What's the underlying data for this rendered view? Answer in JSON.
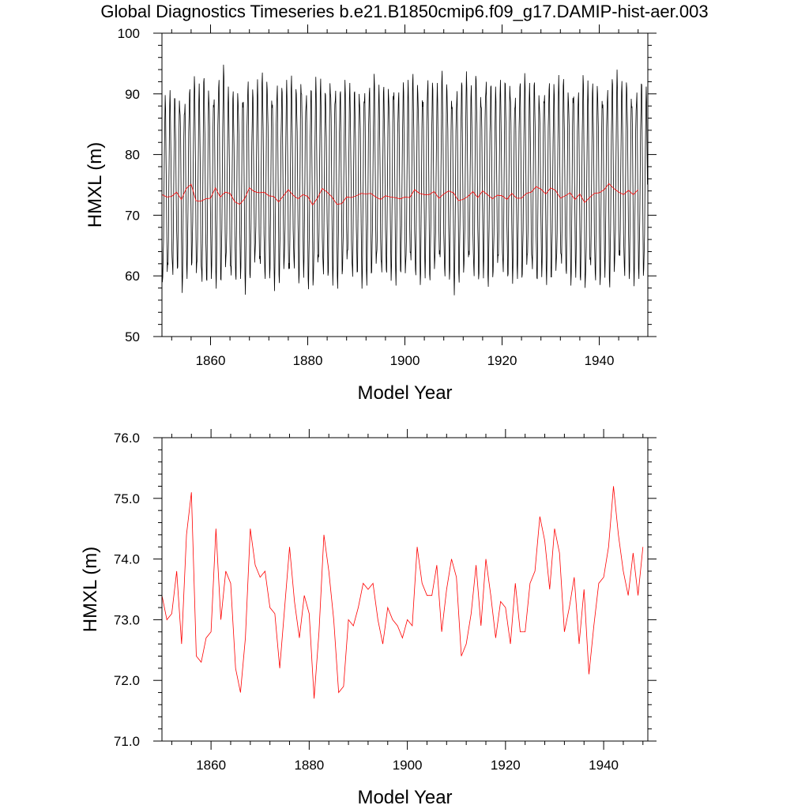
{
  "title": "Global Diagnostics Timeseries b.e21.B1850cmip6.f09_g17.DAMIP-hist-aer.003",
  "colors": {
    "monthly": "#000000",
    "annual": "#ff0000",
    "axes": "#000000",
    "background": "#ffffff"
  },
  "chart_data": [
    {
      "type": "line",
      "xlabel": "Model Year",
      "ylabel": "HMXL (m)",
      "xlim": [
        1850,
        1950
      ],
      "ylim": [
        50,
        100
      ],
      "xticks": [
        1860,
        1880,
        1900,
        1920,
        1940
      ],
      "xtick_labels": [
        "1860",
        "1880",
        "1900",
        "1920",
        "1940"
      ],
      "yticks": [
        50,
        60,
        70,
        80,
        90,
        100
      ],
      "ytick_labels": [
        "50",
        "60",
        "70",
        "80",
        "90",
        "100"
      ],
      "grid": false,
      "series": [
        {
          "color": "#000000",
          "style": "monthly seasonal cycle",
          "x_start": 1850,
          "x_end": 1950,
          "points_per_year": 12,
          "annual_peaks": [
            89.8,
            90.6,
            90.3,
            90.5,
            90.6,
            91.8,
            92.9,
            91.7,
            93.3,
            92.1,
            91.6,
            93.5,
            94.8,
            91.2,
            90.6,
            91.4,
            91.6,
            93.4,
            90.8,
            92.4,
            93.5,
            93.2,
            91.5,
            92.9,
            91.5,
            92.3,
            93.0,
            91.8,
            94.1,
            91.4,
            91.6,
            92.8,
            92.5,
            91.2,
            93.8,
            92.6,
            91.5,
            92.3,
            91.8,
            91.3,
            91.6,
            92.6,
            92.1,
            93.3,
            91.5,
            91.6,
            92.2,
            93.1,
            91.4,
            91.9,
            92.3,
            93.3,
            92.7,
            91.9,
            93.6,
            92.1,
            91.8,
            93.8,
            92.7,
            91.3,
            92.1,
            92.6,
            93.7,
            91.4,
            94.1,
            91.6,
            93.9,
            92.4,
            91.2,
            92.3,
            92.9,
            93.2,
            91.5,
            92.8,
            93.4,
            91.8,
            92.6,
            91.3,
            92.3,
            92.9,
            91.6,
            93.1,
            92.7,
            91.5,
            92.6,
            91.4,
            93.1,
            92.2,
            91.7,
            92.5,
            91.6,
            92.0,
            92.9,
            94.0,
            92.1,
            93.0,
            91.5,
            91.9,
            92.6,
            91.2
          ],
          "annual_troughs": [
            57.9,
            58.3,
            58.6,
            60.4,
            57.2,
            59.5,
            60.7,
            58.4,
            56.9,
            58.1,
            59.5,
            57.9,
            58.2,
            59.8,
            57.8,
            58.3,
            59.5,
            56.9,
            59.1,
            60.8,
            59.2,
            58.3,
            59.6,
            57.5,
            58.7,
            59.9,
            57.9,
            60.0,
            58.6,
            59.7,
            57.8,
            57.2,
            59.6,
            58.8,
            59.4,
            58.4,
            57.9,
            59.2,
            60.6,
            58.1,
            59.6,
            57.9,
            58.4,
            59.3,
            60.2,
            58.5,
            59.5,
            59.2,
            58.4,
            59.8,
            58.8,
            60.1,
            59.0,
            58.5,
            59.6,
            58.9,
            59.8,
            60.2,
            58.7,
            59.4,
            56.8,
            58.9,
            59.3,
            60.4,
            58.5,
            59.1,
            59.6,
            58.2,
            58.7,
            59.7,
            59.0,
            59.1,
            58.7,
            59.5,
            58.6,
            59.8,
            59.2,
            58.4,
            59.8,
            58.5,
            58.7,
            59.0,
            59.8,
            59.3,
            58.4,
            59.7,
            58.6,
            56.4,
            59.2,
            58.1,
            58.5,
            59.7,
            57.9,
            59.3,
            60.4,
            58.7,
            59.4,
            58.3,
            59.5,
            58.9
          ]
        },
        {
          "color": "#ff0000",
          "style": "annual mean",
          "x_start": 1850,
          "x_step": 1,
          "values": [
            73.4,
            73.0,
            73.1,
            73.8,
            72.6,
            74.4,
            75.1,
            72.4,
            72.3,
            72.7,
            72.8,
            74.5,
            73.0,
            73.8,
            73.6,
            72.2,
            71.8,
            72.7,
            74.5,
            73.9,
            73.7,
            73.8,
            73.2,
            73.1,
            72.2,
            73.2,
            74.2,
            73.3,
            72.7,
            73.4,
            73.1,
            71.7,
            72.8,
            74.4,
            73.8,
            73.0,
            71.8,
            71.9,
            73.0,
            72.9,
            73.2,
            73.6,
            73.5,
            73.6,
            73.0,
            72.6,
            73.2,
            73.0,
            72.9,
            72.7,
            73.0,
            72.9,
            74.2,
            73.6,
            73.4,
            73.4,
            73.9,
            72.8,
            73.5,
            74.0,
            73.7,
            72.4,
            72.6,
            73.1,
            73.9,
            72.9,
            74.0,
            73.4,
            72.7,
            73.3,
            73.2,
            72.6,
            73.6,
            72.8,
            72.8,
            73.6,
            73.8,
            74.7,
            74.3,
            73.5,
            74.5,
            74.1,
            72.8,
            73.2,
            73.7,
            72.6,
            73.5,
            72.1,
            72.9,
            73.6,
            73.7,
            74.2,
            75.2,
            74.4,
            73.8,
            73.4,
            74.1,
            73.4,
            74.2
          ]
        }
      ]
    },
    {
      "type": "line",
      "xlabel": "Model Year",
      "ylabel": "HMXL (m)",
      "xlim": [
        1850,
        1949
      ],
      "ylim": [
        71,
        76
      ],
      "xticks": [
        1860,
        1880,
        1900,
        1920,
        1940
      ],
      "xtick_labels": [
        "1860",
        "1880",
        "1900",
        "1920",
        "1940"
      ],
      "yticks": [
        71,
        72,
        73,
        74,
        75,
        76
      ],
      "ytick_labels": [
        "71.0",
        "72.0",
        "73.0",
        "74.0",
        "75.0",
        "76.0"
      ],
      "grid": false,
      "series": [
        {
          "color": "#ff0000",
          "style": "annual mean",
          "x_start": 1850,
          "x_step": 1,
          "values": [
            73.4,
            73.0,
            73.1,
            73.8,
            72.6,
            74.4,
            75.1,
            72.4,
            72.3,
            72.7,
            72.8,
            74.5,
            73.0,
            73.8,
            73.6,
            72.2,
            71.8,
            72.7,
            74.5,
            73.9,
            73.7,
            73.8,
            73.2,
            73.1,
            72.2,
            73.2,
            74.2,
            73.3,
            72.7,
            73.4,
            73.1,
            71.7,
            72.8,
            74.4,
            73.8,
            73.0,
            71.8,
            71.9,
            73.0,
            72.9,
            73.2,
            73.6,
            73.5,
            73.6,
            73.0,
            72.6,
            73.2,
            73.0,
            72.9,
            72.7,
            73.0,
            72.9,
            74.2,
            73.6,
            73.4,
            73.4,
            73.9,
            72.8,
            73.5,
            74.0,
            73.7,
            72.4,
            72.6,
            73.1,
            73.9,
            72.9,
            74.0,
            73.4,
            72.7,
            73.3,
            73.2,
            72.6,
            73.6,
            72.8,
            72.8,
            73.6,
            73.8,
            74.7,
            74.3,
            73.5,
            74.5,
            74.1,
            72.8,
            73.2,
            73.7,
            72.6,
            73.5,
            72.1,
            72.9,
            73.6,
            73.7,
            74.2,
            75.2,
            74.4,
            73.8,
            73.4,
            74.1,
            73.4,
            74.2
          ]
        }
      ]
    }
  ]
}
